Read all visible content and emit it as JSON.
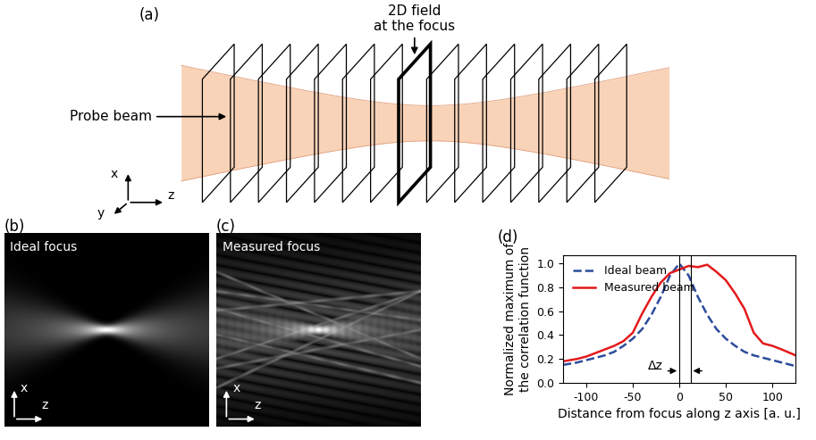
{
  "panels": {
    "a": "(a)",
    "b": "(b)",
    "c": "(c)",
    "d": "(d)"
  },
  "diagram": {
    "field_label": "2D field\nat the focus",
    "beam_label": "Probe beam",
    "axes": [
      "x",
      "y",
      "z"
    ]
  },
  "images": [
    {
      "title": "Ideal focus",
      "axes": [
        "x",
        "z"
      ]
    },
    {
      "title": "Measured focus",
      "axes": [
        "x",
        "z"
      ]
    }
  ],
  "chart_data": {
    "type": "line",
    "xlabel": "Distance from focus along z axis [a. u.]",
    "ylabel": "Normalized maximum of\nthe correlation function",
    "x": [
      -125,
      -110,
      -100,
      -90,
      -80,
      -70,
      -60,
      -50,
      -40,
      -30,
      -20,
      -10,
      0,
      10,
      20,
      30,
      40,
      50,
      60,
      70,
      80,
      90,
      100,
      110,
      125
    ],
    "series": [
      {
        "name": "Ideal beam",
        "color": "#2b4c9b",
        "line_style": "dashed",
        "values": [
          0.15,
          0.17,
          0.19,
          0.21,
          0.23,
          0.26,
          0.31,
          0.37,
          0.45,
          0.57,
          0.72,
          0.9,
          1.0,
          0.9,
          0.72,
          0.57,
          0.45,
          0.37,
          0.31,
          0.26,
          0.23,
          0.21,
          0.19,
          0.17,
          0.14
        ]
      },
      {
        "name": "Measured beam",
        "color": "#e31a1c",
        "line_style": "solid",
        "values": [
          0.18,
          0.2,
          0.22,
          0.25,
          0.28,
          0.31,
          0.35,
          0.42,
          0.58,
          0.72,
          0.84,
          0.92,
          0.95,
          0.98,
          0.97,
          0.99,
          0.93,
          0.86,
          0.75,
          0.62,
          0.42,
          0.33,
          0.31,
          0.28,
          0.23
        ]
      }
    ],
    "vlines": [
      0,
      12
    ],
    "annotation": "Δz",
    "xlim": [
      -125,
      125
    ],
    "ylim": [
      0,
      1.07
    ],
    "xticks": [
      -100,
      -50,
      0,
      50,
      100
    ],
    "yticks": [
      {
        "value": 0,
        "label": "0.0"
      },
      {
        "value": 0.2,
        "label": "0.2"
      },
      {
        "value": 0.4,
        "label": "0.4"
      },
      {
        "value": 0.6,
        "label": "0.6"
      },
      {
        "value": 0.8,
        "label": "0.8"
      },
      {
        "value": 1.0,
        "label": "1.0"
      }
    ],
    "legend": "upper left"
  }
}
